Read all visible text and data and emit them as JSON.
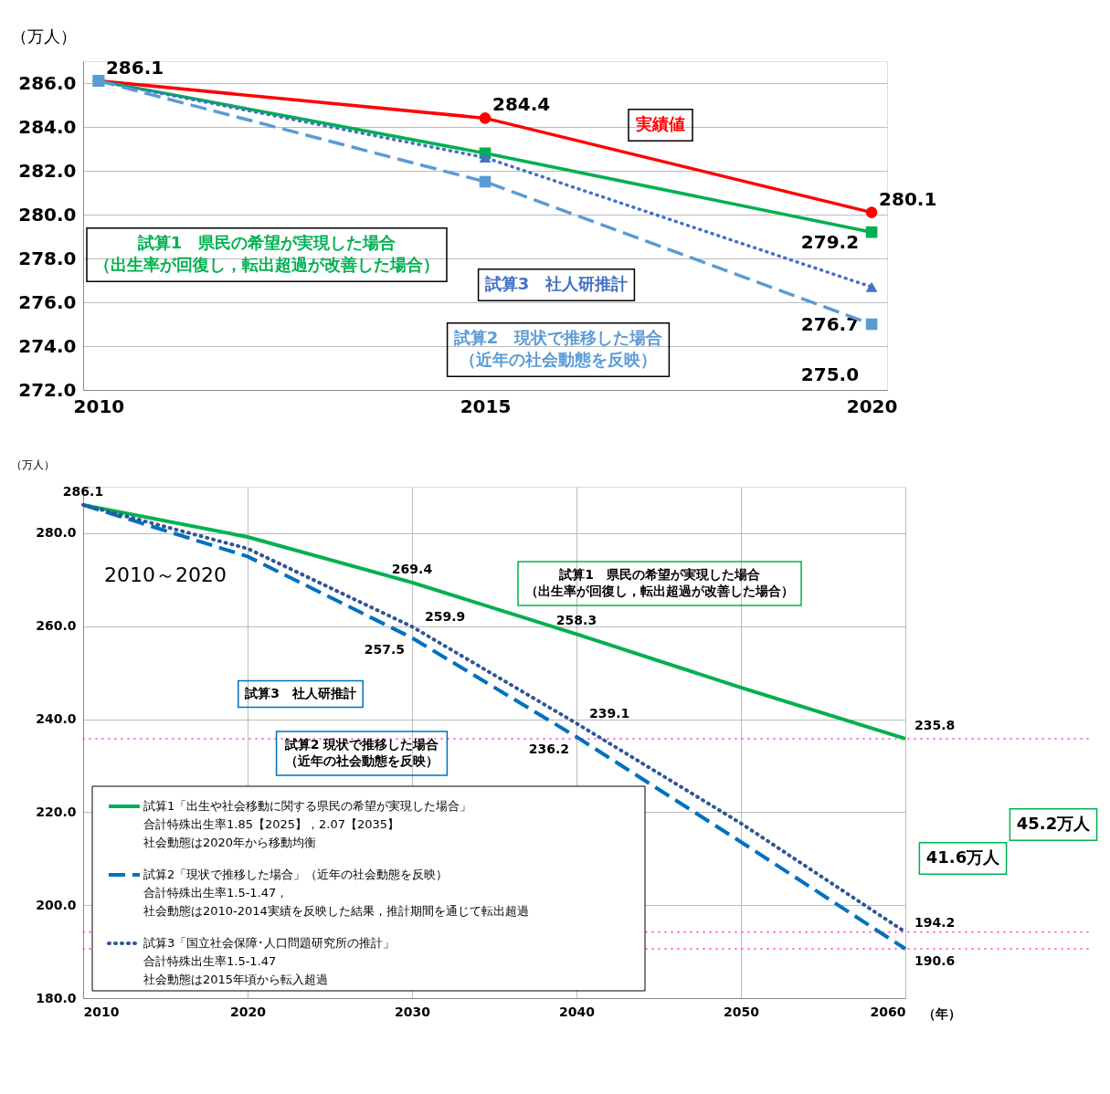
{
  "chart_data": [
    {
      "type": "line",
      "ylabel": "（万人）",
      "x": [
        2010,
        2015,
        2020
      ],
      "xlim": [
        2009.8,
        2020.2
      ],
      "xticks": [
        2010,
        2015,
        2020
      ],
      "ylim": [
        272,
        287
      ],
      "yticks": [
        {
          "value": 272,
          "label": "272.0"
        },
        {
          "value": 274,
          "label": "274.0"
        },
        {
          "value": 276,
          "label": "276.0"
        },
        {
          "value": 278,
          "label": "278.0"
        },
        {
          "value": 280,
          "label": "280.0"
        },
        {
          "value": 282,
          "label": "282.0"
        },
        {
          "value": 284,
          "label": "284.0"
        },
        {
          "value": 286,
          "label": "286.0"
        }
      ],
      "grid": "y",
      "legend": false,
      "series": [
        {
          "name": "実績値",
          "color": "#ff0000",
          "marker": "circle",
          "line_style": "solid",
          "values": [
            286.1,
            284.4,
            280.1
          ],
          "value_labels": [
            "286.1",
            "284.4",
            "280.1"
          ]
        },
        {
          "name": "試算1　県民の希望が実現した場合（出生率が回復し，転出超過が改善した場合）",
          "color": "#00b050",
          "marker": "square",
          "line_style": "solid",
          "values": [
            286.1,
            282.8,
            279.2
          ],
          "value_labels": [
            null,
            null,
            "279.2"
          ]
        },
        {
          "name": "試算3　社人研推計",
          "color": "#4472c4",
          "marker": "triangle",
          "line_style": "dotted",
          "values": [
            286.1,
            282.6,
            276.7
          ],
          "value_labels": [
            null,
            null,
            "276.7"
          ]
        },
        {
          "name": "試算2　現状で推移した場合（近年の社会動態を反映）",
          "color": "#5b9bd5",
          "marker": "square",
          "line_style": "dashed",
          "values": [
            286.1,
            281.5,
            275.0
          ],
          "value_labels": [
            null,
            null,
            "275.0"
          ]
        }
      ]
    },
    {
      "type": "line",
      "ylabel": "（万人）",
      "xlabel": "（年）",
      "x": [
        2010,
        2020,
        2030,
        2040,
        2050,
        2060
      ],
      "xlim": [
        2010,
        2060
      ],
      "xticks": [
        2010,
        2020,
        2030,
        2040,
        2050,
        2060
      ],
      "ylim": [
        180,
        290
      ],
      "yticks": [
        {
          "value": 180,
          "label": "180.0"
        },
        {
          "value": 200,
          "label": "200.0"
        },
        {
          "value": 220,
          "label": "220.0"
        },
        {
          "value": 240,
          "label": "240.0"
        },
        {
          "value": 260,
          "label": "260.0"
        },
        {
          "value": 280,
          "label": "280.0"
        }
      ],
      "grid": true,
      "legend": "bottom left",
      "series": [
        {
          "name": "試算1「出生や社会移動に関する県民の希望が実現した場合」合計特殊出生率1.85【2025】，2.07【2035】社会動態は2020年から移動均衡",
          "color": "#00b050",
          "marker": "none",
          "line_style": "solid",
          "values": [
            286.1,
            279.2,
            269.4,
            258.3,
            246.8,
            235.8
          ],
          "value_labels": [
            "286.1",
            null,
            "269.4",
            "258.3",
            null,
            "235.8"
          ]
        },
        {
          "name": "試算2「現状で推移した場合」（近年の社会動態を反映）合計特殊出生率1.5-1.47，社会動態は2010-2014実績を反映した結果，推計期間を通じて転出超過",
          "color": "#0070c0",
          "marker": "none",
          "line_style": "dashed",
          "values": [
            286.1,
            275.0,
            257.5,
            236.2,
            213.6,
            190.6
          ],
          "value_labels": [
            null,
            null,
            "257.5",
            "236.2",
            null,
            "190.6"
          ]
        },
        {
          "name": "試算3「国立社会保障･人口問題研究所の推計」合計特殊出生率1.5-1.47社会動態は2015年頃から転入超過",
          "color": "#2f5597",
          "marker": "none",
          "line_style": "dotted",
          "values": [
            286.1,
            276.7,
            259.9,
            239.1,
            217.6,
            194.2
          ],
          "value_labels": [
            null,
            null,
            "259.9",
            "239.1",
            null,
            "194.2"
          ]
        }
      ],
      "ref_lines": [
        {
          "axis": "y",
          "value": 235.8,
          "color": "#ff33cc",
          "line_style": "dotted"
        },
        {
          "axis": "y",
          "value": 194.2,
          "color": "#ff33cc",
          "line_style": "dotted"
        },
        {
          "axis": "y",
          "value": 190.6,
          "color": "#ff33cc",
          "line_style": "dotted"
        }
      ],
      "annotations": [
        "2010～2020",
        "試算1　県民の希望が実現した場合（出生率が回復し，転出超過が改善した場合）",
        "試算3　社人研推計",
        "試算2 現状で推移した場合（近年の社会動態を反映）",
        "41.6万人",
        "45.2万人"
      ]
    }
  ]
}
